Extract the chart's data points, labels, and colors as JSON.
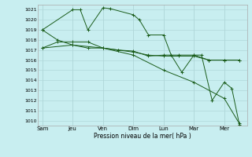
{
  "background_color": "#c8eef0",
  "grid_color": "#b0d8da",
  "line_color": "#1a5c1a",
  "xlabel": "Pression niveau de la mer( hPa )",
  "ylim": [
    1009.5,
    1021.5
  ],
  "yticks": [
    1010,
    1011,
    1012,
    1013,
    1014,
    1015,
    1016,
    1017,
    1018,
    1019,
    1020,
    1021
  ],
  "xtick_labels": [
    "Sam",
    "Jeu",
    "Ven",
    "Dim",
    "Lun",
    "Mar",
    "Mer"
  ],
  "xtick_positions": [
    0,
    2,
    4,
    6,
    8,
    10,
    12
  ],
  "series1": {
    "x": [
      0,
      2,
      2.5,
      3.0,
      4,
      4.5,
      6,
      6.4,
      7.0,
      8,
      8.5,
      9.2,
      10,
      10.5,
      11.2,
      12,
      12.5,
      13.0
    ],
    "y": [
      1019,
      1021,
      1021,
      1019,
      1021.2,
      1021.1,
      1020.5,
      1020,
      1018.5,
      1018.5,
      1016.5,
      1014.8,
      1016.5,
      1016.5,
      1012,
      1013.8,
      1013.2,
      1009.6
    ]
  },
  "series2": {
    "x": [
      0,
      1,
      2,
      3,
      4,
      5,
      6,
      7,
      8,
      9,
      10,
      11,
      12,
      13
    ],
    "y": [
      1017.2,
      1017.8,
      1017.8,
      1017.8,
      1017.2,
      1017.0,
      1016.9,
      1016.4,
      1016.5,
      1016.5,
      1016.5,
      1016.0,
      1016.0,
      1016.0
    ]
  },
  "series3": {
    "x": [
      0,
      1,
      2,
      3,
      4,
      5,
      6,
      7,
      8,
      9,
      10,
      11,
      12,
      13
    ],
    "y": [
      1019,
      1018.0,
      1017.5,
      1017.2,
      1017.2,
      1017.0,
      1016.8,
      1016.5,
      1016.4,
      1016.4,
      1016.4,
      1016.0,
      1016.0,
      1016.0
    ]
  },
  "series4": {
    "x": [
      0,
      2,
      4,
      6,
      8,
      10,
      12,
      13
    ],
    "y": [
      1017.2,
      1017.5,
      1017.2,
      1016.5,
      1015.0,
      1013.8,
      1012.2,
      1009.7
    ]
  }
}
